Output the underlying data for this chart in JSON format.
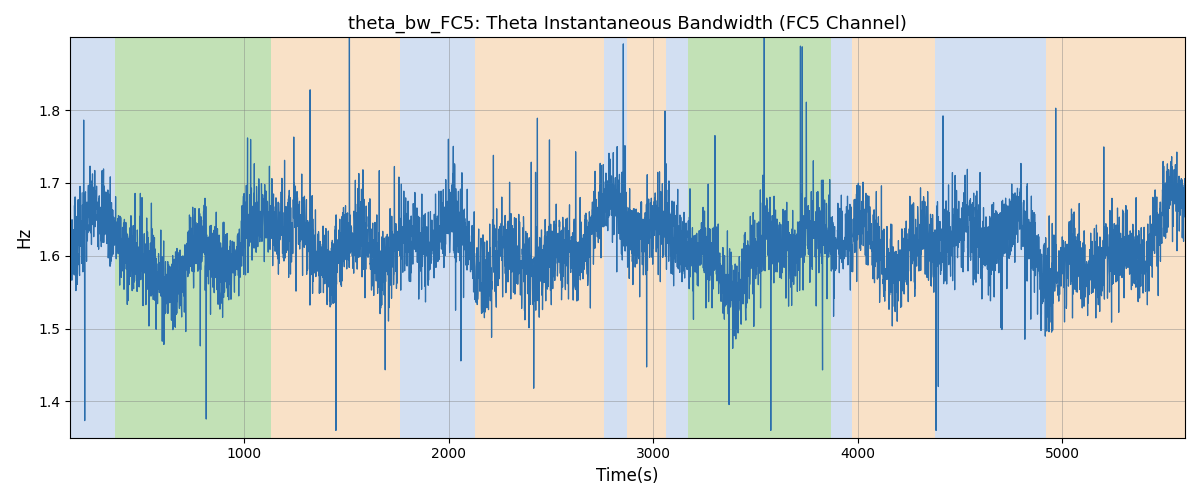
{
  "title": "theta_bw_FC5: Theta Instantaneous Bandwidth (FC5 Channel)",
  "xlabel": "Time(s)",
  "ylabel": "Hz",
  "xlim": [
    150,
    5600
  ],
  "ylim": [
    1.35,
    1.9
  ],
  "yticks": [
    1.4,
    1.5,
    1.6,
    1.7,
    1.8
  ],
  "xticks": [
    1000,
    2000,
    3000,
    4000,
    5000
  ],
  "line_color": "#2c6fad",
  "line_width": 0.9,
  "bg_regions": [
    {
      "xmin": 150,
      "xmax": 370,
      "color": "#aec6e8",
      "alpha": 0.55
    },
    {
      "xmin": 370,
      "xmax": 1130,
      "color": "#90c97a",
      "alpha": 0.55
    },
    {
      "xmin": 1130,
      "xmax": 1760,
      "color": "#f5c99a",
      "alpha": 0.55
    },
    {
      "xmin": 1760,
      "xmax": 2130,
      "color": "#aec6e8",
      "alpha": 0.55
    },
    {
      "xmin": 2130,
      "xmax": 2760,
      "color": "#f5c99a",
      "alpha": 0.55
    },
    {
      "xmin": 2760,
      "xmax": 2870,
      "color": "#aec6e8",
      "alpha": 0.55
    },
    {
      "xmin": 2870,
      "xmax": 3060,
      "color": "#f5c99a",
      "alpha": 0.55
    },
    {
      "xmin": 3060,
      "xmax": 3170,
      "color": "#aec6e8",
      "alpha": 0.55
    },
    {
      "xmin": 3170,
      "xmax": 3870,
      "color": "#90c97a",
      "alpha": 0.55
    },
    {
      "xmin": 3870,
      "xmax": 3970,
      "color": "#aec6e8",
      "alpha": 0.55
    },
    {
      "xmin": 3970,
      "xmax": 4380,
      "color": "#f5c99a",
      "alpha": 0.55
    },
    {
      "xmin": 4380,
      "xmax": 4920,
      "color": "#aec6e8",
      "alpha": 0.55
    },
    {
      "xmin": 4920,
      "xmax": 5600,
      "color": "#f5c99a",
      "alpha": 0.55
    }
  ],
  "figsize": [
    12.0,
    5.0
  ],
  "dpi": 100,
  "title_fontsize": 13,
  "axis_label_fontsize": 12
}
